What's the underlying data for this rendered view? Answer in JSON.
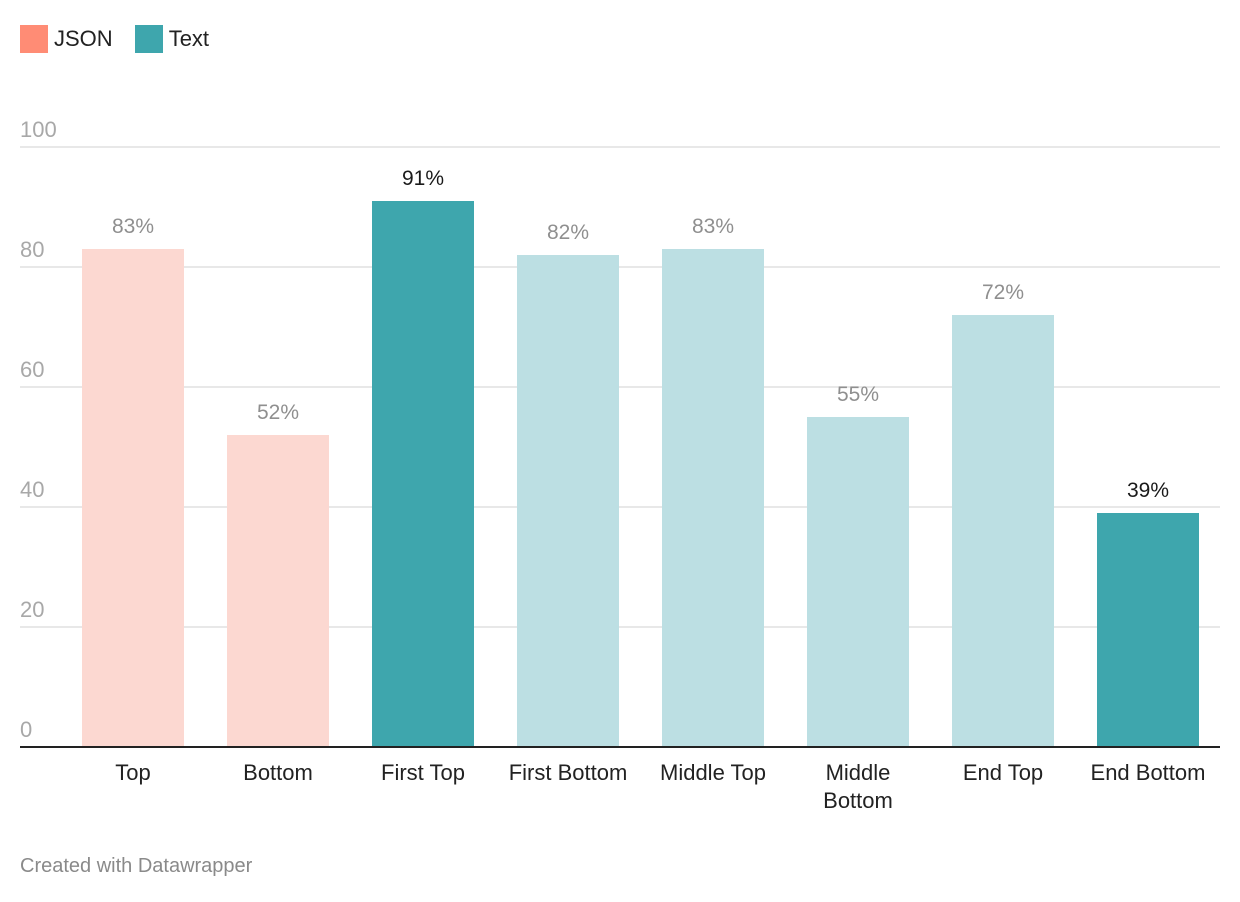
{
  "legend": [
    {
      "label": "JSON",
      "color": "#ff8c75"
    },
    {
      "label": "Text",
      "color": "#3ea6ad"
    }
  ],
  "chart_data": {
    "type": "bar",
    "categories": [
      "Top",
      "Bottom",
      "First Top",
      "First Bottom",
      "Middle Top",
      "Middle Bottom",
      "End Top",
      "End Bottom"
    ],
    "category_lines": [
      [
        "Top"
      ],
      [
        "Bottom"
      ],
      [
        "First Top"
      ],
      [
        "First Bottom"
      ],
      [
        "Middle Top"
      ],
      [
        "Middle",
        "Bottom"
      ],
      [
        "End Top"
      ],
      [
        "End Bottom"
      ]
    ],
    "values": [
      83,
      52,
      91,
      82,
      83,
      55,
      72,
      39
    ],
    "value_labels": [
      "83%",
      "52%",
      "91%",
      "82%",
      "83%",
      "55%",
      "72%",
      "39%"
    ],
    "bar_colors": [
      "#fcd8d1",
      "#fcd8d1",
      "#3ea6ad",
      "#bcdfe3",
      "#bcdfe3",
      "#bcdfe3",
      "#bcdfe3",
      "#3ea6ad"
    ],
    "label_colors": [
      "#8f8f8f",
      "#8f8f8f",
      "#1a1a1a",
      "#8f8f8f",
      "#8f8f8f",
      "#8f8f8f",
      "#8f8f8f",
      "#1a1a1a"
    ],
    "yticks": [
      0,
      20,
      40,
      60,
      80,
      100
    ],
    "ylim": [
      0,
      100
    ],
    "grid": true,
    "legend_position": "top-left",
    "title": "",
    "xlabel": "",
    "ylabel": ""
  },
  "credit": "Created with Datawrapper"
}
